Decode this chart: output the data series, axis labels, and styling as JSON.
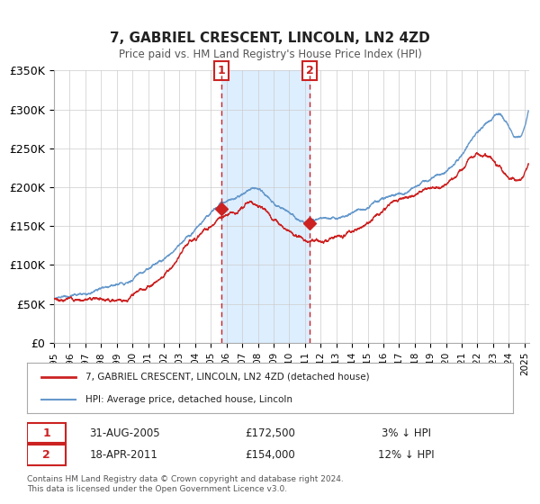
{
  "title_line1": "7, GABRIEL CRESCENT, LINCOLN, LN2 4ZD",
  "title_line2": "Price paid vs. HM Land Registry's House Price Index (HPI)",
  "ylabel": "",
  "ylim": [
    0,
    350000
  ],
  "yticks": [
    0,
    50000,
    100000,
    150000,
    200000,
    250000,
    300000,
    350000
  ],
  "ytick_labels": [
    "£0",
    "£50K",
    "£100K",
    "£150K",
    "£200K",
    "£250K",
    "£300K",
    "£350K"
  ],
  "xlim_start": 1995.0,
  "xlim_end": 2025.3,
  "marker1_x": 2005.664,
  "marker1_y": 172500,
  "marker1_label": "1",
  "marker1_date": "31-AUG-2005",
  "marker1_price": "£172,500",
  "marker1_hpi": "3% ↓ HPI",
  "marker2_x": 2011.297,
  "marker2_y": 154000,
  "marker2_label": "2",
  "marker2_date": "18-APR-2011",
  "marker2_price": "£154,000",
  "marker2_hpi": "12% ↓ HPI",
  "shade_x1": 2005.664,
  "shade_x2": 2011.297,
  "shade_color": "#ddeeff",
  "hpi_line_color": "#6699cc",
  "price_line_color": "#cc2222",
  "legend_line1": "7, GABRIEL CRESCENT, LINCOLN, LN2 4ZD (detached house)",
  "legend_line2": "HPI: Average price, detached house, Lincoln",
  "footnote1": "Contains HM Land Registry data © Crown copyright and database right 2024.",
  "footnote2": "This data is licensed under the Open Government Licence v3.0.",
  "background_color": "#ffffff",
  "plot_bg_color": "#ffffff",
  "grid_color": "#cccccc",
  "marker_box_color": "#cc2222"
}
